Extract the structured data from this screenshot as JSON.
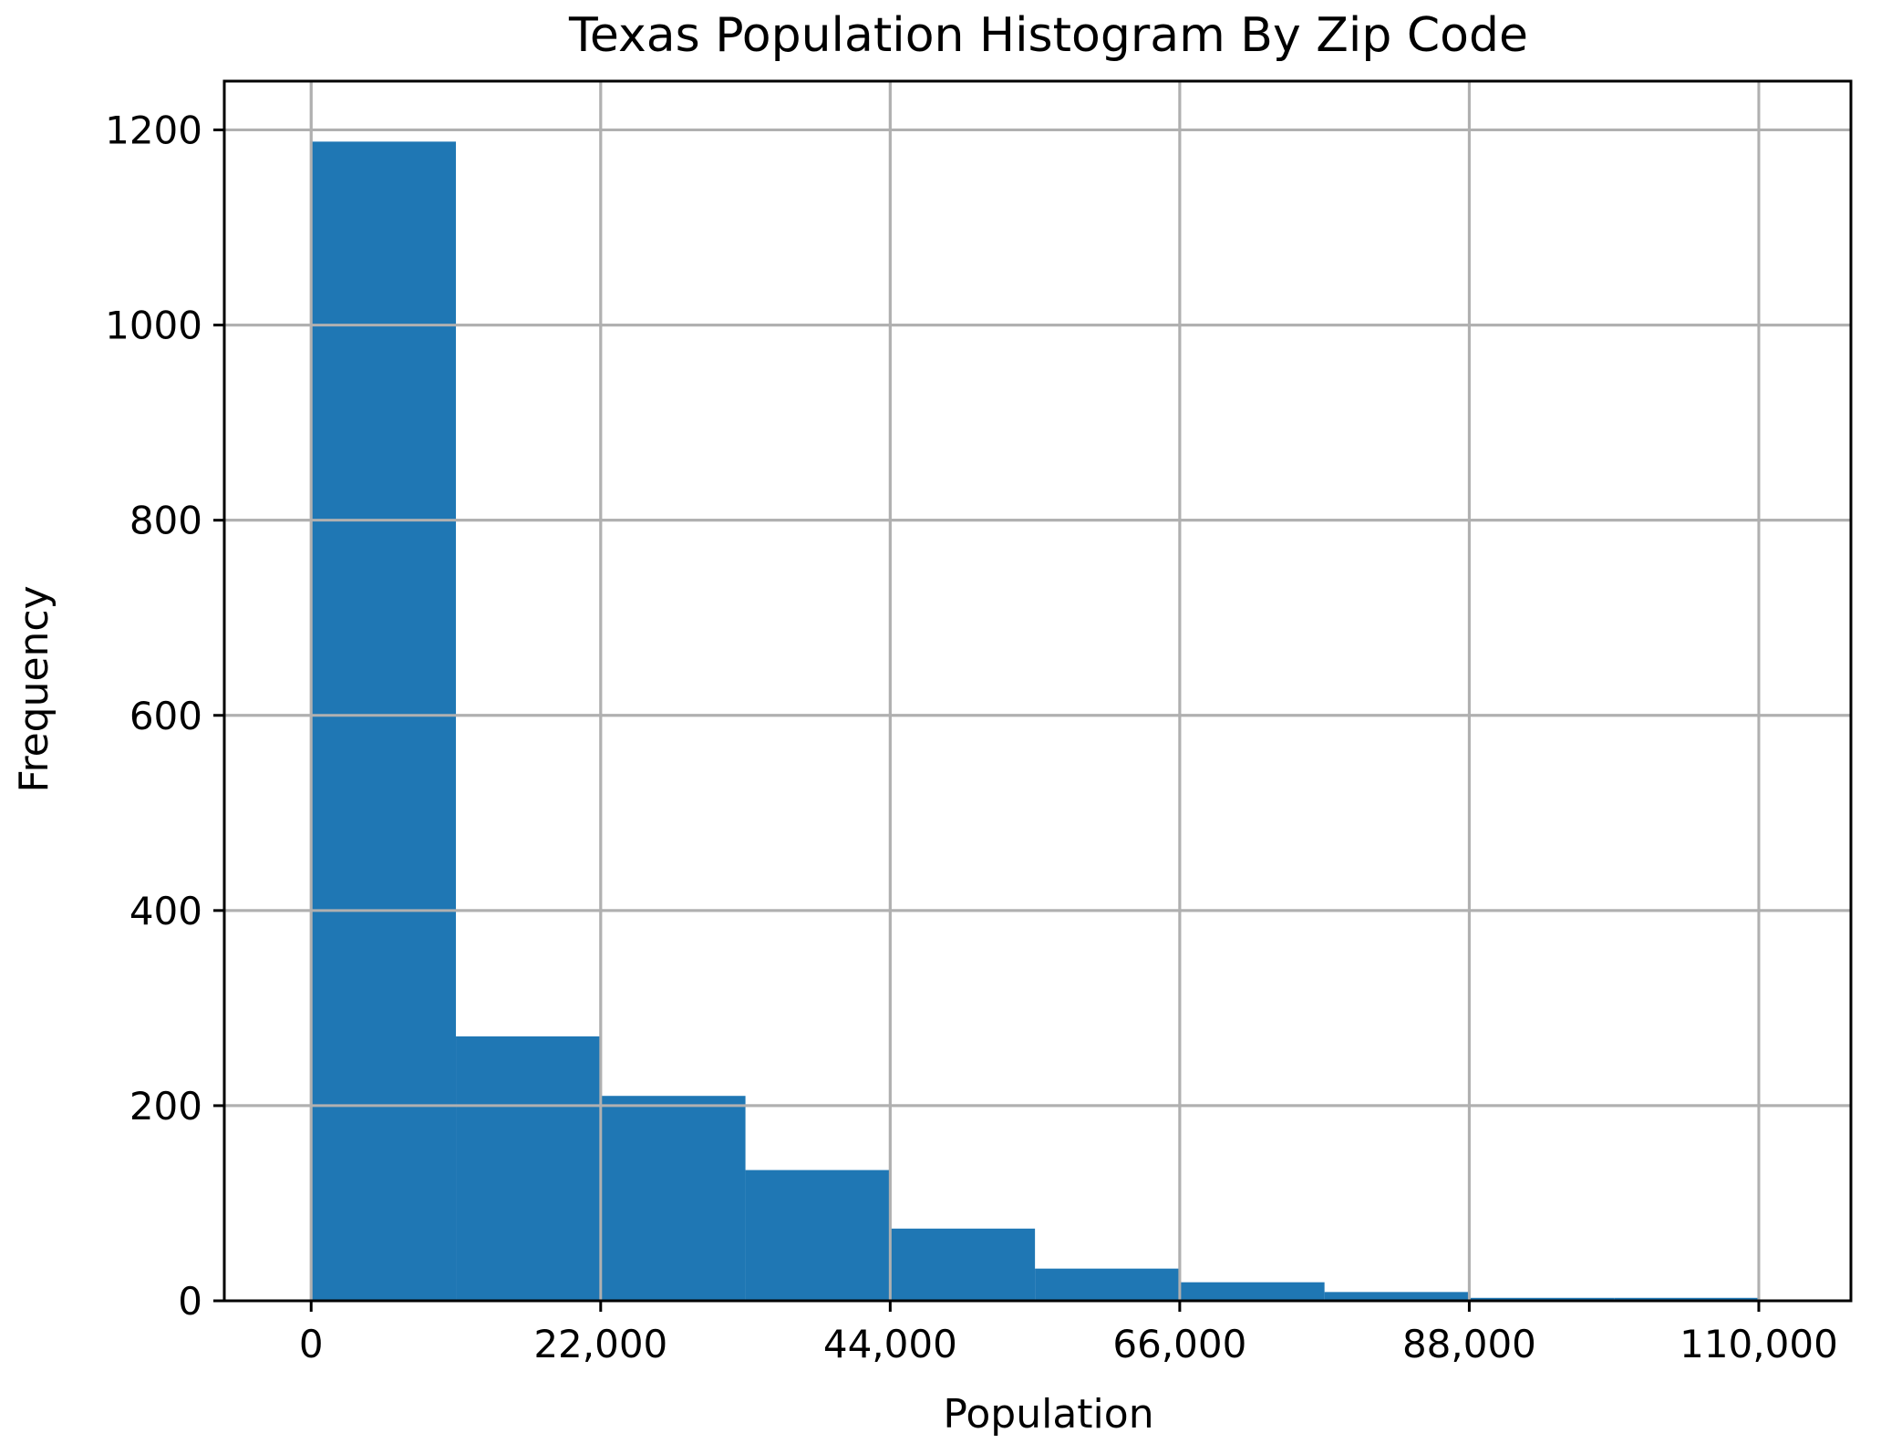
{
  "chart_data": {
    "type": "bar",
    "title": "Texas Population Histogram By Zip Code",
    "xlabel": "Population",
    "ylabel": "Frequency",
    "bin_edges": [
      0,
      11000,
      22000,
      33000,
      44000,
      55000,
      66000,
      77000,
      88000,
      99000,
      110000
    ],
    "values": [
      1188,
      271,
      210,
      134,
      74,
      33,
      19,
      9,
      3,
      3
    ],
    "xlim": [
      -6600,
      117000
    ],
    "ylim": [
      0,
      1250
    ],
    "x_ticks": [
      0,
      22000,
      44000,
      66000,
      88000,
      110000
    ],
    "x_tick_labels": [
      "0",
      "22,000",
      "44,000",
      "66,000",
      "88,000",
      "110,000"
    ],
    "y_ticks": [
      0,
      200,
      400,
      600,
      800,
      1000,
      1200
    ],
    "y_tick_labels": [
      "0",
      "200",
      "400",
      "600",
      "800",
      "1000",
      "1200"
    ],
    "grid": true,
    "bar_color": "#1f77b4",
    "grid_color": "#b0b0b0"
  }
}
